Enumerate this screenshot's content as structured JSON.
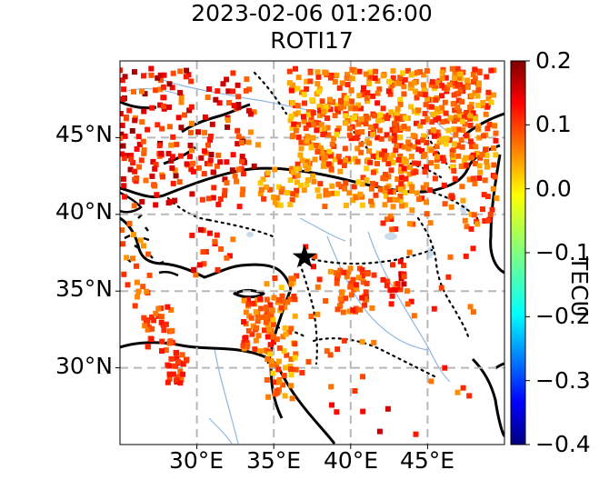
{
  "title": {
    "line1": "2023-02-06 01:26:00",
    "line2": "ROTI17"
  },
  "map": {
    "lon_range": [
      25,
      50
    ],
    "lat_range": [
      25,
      50
    ],
    "lat_ticks": [
      {
        "value": 45,
        "label": "45°N"
      },
      {
        "value": 40,
        "label": "40°N"
      },
      {
        "value": 35,
        "label": "35°N"
      },
      {
        "value": 30,
        "label": "30°N"
      }
    ],
    "lon_ticks": [
      {
        "value": 30,
        "label": "30°E"
      },
      {
        "value": 35,
        "label": "35°E"
      },
      {
        "value": 40,
        "label": "40°E"
      },
      {
        "value": 45,
        "label": "45°E"
      }
    ],
    "gridlines": "dashed grey",
    "epicenter": {
      "lon": 37.0,
      "lat": 37.2,
      "marker": "star"
    },
    "point_clusters": [
      {
        "lon": [
          36,
          49.5
        ],
        "lat": [
          43,
          49.5
        ],
        "n": 560,
        "vmin": 0.0,
        "vmax": 0.12
      },
      {
        "lon": [
          25,
          34
        ],
        "lat": [
          42.5,
          49.5
        ],
        "n": 150,
        "vmin": 0.04,
        "vmax": 0.19
      },
      {
        "lon": [
          25,
          33
        ],
        "lat": [
          40.5,
          44
        ],
        "n": 60,
        "vmin": 0.06,
        "vmax": 0.16
      },
      {
        "lon": [
          34,
          44
        ],
        "lat": [
          40.5,
          43
        ],
        "n": 110,
        "vmin": 0.0,
        "vmax": 0.1
      },
      {
        "lon": [
          42,
          49.5
        ],
        "lat": [
          39,
          44
        ],
        "n": 90,
        "vmin": 0.02,
        "vmax": 0.12
      },
      {
        "lon": [
          29,
          32.5
        ],
        "lat": [
          36,
          39
        ],
        "n": 18,
        "vmin": 0.05,
        "vmax": 0.15
      },
      {
        "lon": [
          25,
          27
        ],
        "lat": [
          34,
          40
        ],
        "n": 20,
        "vmin": 0.03,
        "vmax": 0.1
      },
      {
        "lon": [
          26.5,
          28.5
        ],
        "lat": [
          31,
          34
        ],
        "n": 35,
        "vmin": 0.05,
        "vmax": 0.12
      },
      {
        "lon": [
          28,
          29.5
        ],
        "lat": [
          29,
          31
        ],
        "n": 25,
        "vmin": 0.06,
        "vmax": 0.13
      },
      {
        "lon": [
          33,
          35
        ],
        "lat": [
          31,
          34.5
        ],
        "n": 60,
        "vmin": 0.03,
        "vmax": 0.12
      },
      {
        "lon": [
          34.5,
          36.5
        ],
        "lat": [
          28,
          36
        ],
        "n": 70,
        "vmin": 0.0,
        "vmax": 0.1
      },
      {
        "lon": [
          39,
          41.5
        ],
        "lat": [
          33.5,
          36.5
        ],
        "n": 45,
        "vmin": 0.04,
        "vmax": 0.12
      },
      {
        "lon": [
          42,
          43.5
        ],
        "lat": [
          35,
          37
        ],
        "n": 15,
        "vmin": 0.08,
        "vmax": 0.16
      },
      {
        "lon": [
          36,
          48
        ],
        "lat": [
          28,
          38
        ],
        "n": 45,
        "vmin": 0.03,
        "vmax": 0.12
      },
      {
        "lon": [
          37,
          46
        ],
        "lat": [
          25.5,
          28
        ],
        "n": 6,
        "vmin": 0.1,
        "vmax": 0.16
      }
    ]
  },
  "colorbar": {
    "vmin": -0.4,
    "vmax": 0.2,
    "colormap": "jet",
    "ticks": [
      {
        "value": 0.2,
        "label": "0.2"
      },
      {
        "value": 0.1,
        "label": "0.1"
      },
      {
        "value": 0.0,
        "label": "0.0"
      },
      {
        "value": -0.1,
        "label": "−0.1"
      },
      {
        "value": -0.2,
        "label": "−0.2"
      },
      {
        "value": -0.3,
        "label": "−0.3"
      },
      {
        "value": -0.4,
        "label": "−0.4"
      }
    ],
    "label": "TECU"
  }
}
